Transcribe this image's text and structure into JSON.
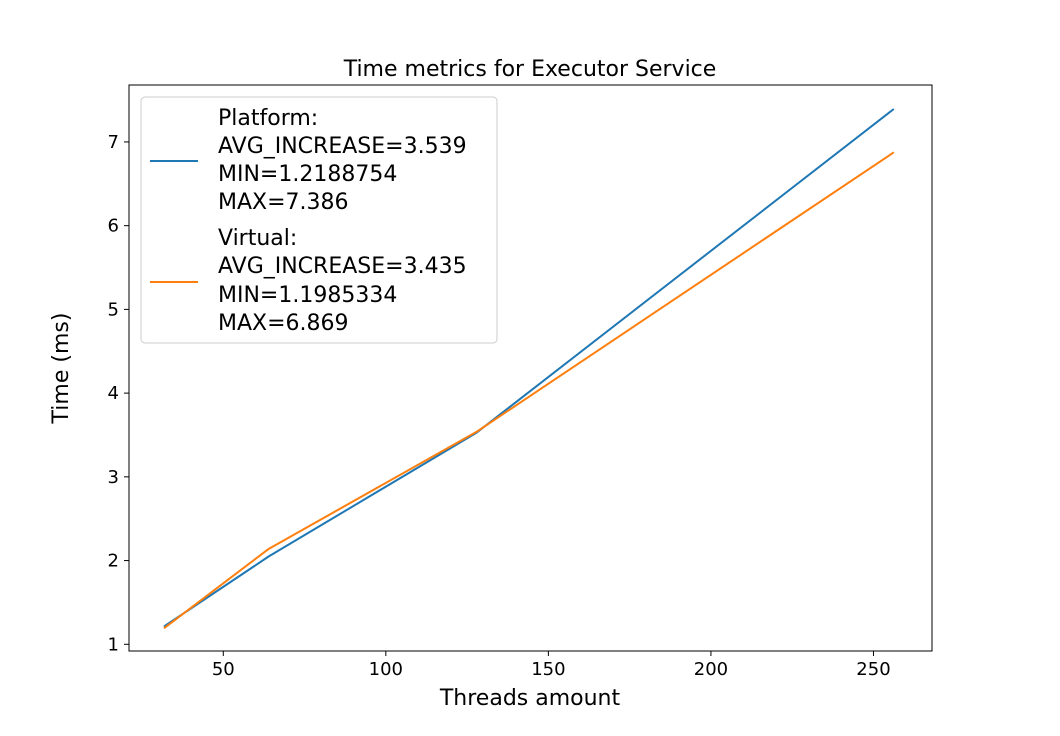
{
  "chart_data": {
    "type": "line",
    "title": "Time metrics for Executor Service",
    "xlabel": "Threads amount",
    "ylabel": "Time (ms)",
    "xlim": [
      21,
      268
    ],
    "ylim": [
      0.92,
      7.68
    ],
    "xticks": [
      50,
      100,
      150,
      200,
      250
    ],
    "yticks": [
      1,
      2,
      3,
      4,
      5,
      6,
      7
    ],
    "x": [
      32,
      64,
      128,
      256
    ],
    "legend_position": "upper left",
    "series": [
      {
        "name": "Platform",
        "color": "#1f77b4",
        "values": [
          1.2188754,
          2.05,
          3.53,
          7.386
        ],
        "legend_lines": [
          "Platform:",
          "AVG_INCREASE=3.539",
          "MIN=1.2188754",
          "MAX=7.386"
        ]
      },
      {
        "name": "Virtual",
        "color": "#ff7f0e",
        "values": [
          1.1985334,
          2.14,
          3.54,
          6.869
        ],
        "legend_lines": [
          "Virtual:",
          "AVG_INCREASE=3.435",
          "MIN=1.1985334",
          "MAX=6.869"
        ]
      }
    ]
  }
}
